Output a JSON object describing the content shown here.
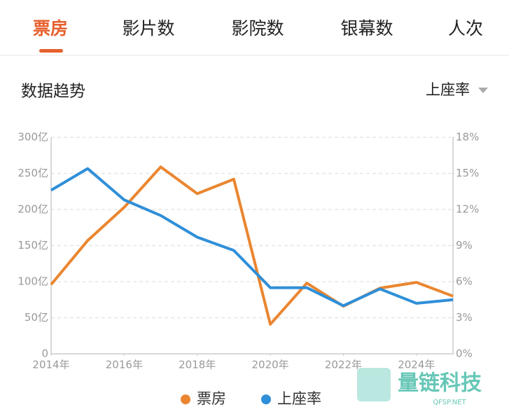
{
  "tabs": [
    "票房",
    "影片数",
    "影院数",
    "银幕数",
    "人次"
  ],
  "section_title": "数据趋势",
  "dropdown": "上座率",
  "watermark": {
    "name": "量链科技",
    "site": "QFSP.NET"
  },
  "chart_data": {
    "type": "line",
    "x": [
      2014,
      2015,
      2016,
      2017,
      2018,
      2019,
      2020,
      2021,
      2022,
      2023,
      2024,
      2025
    ],
    "xlim": [
      2014,
      2025
    ],
    "xticks": [
      {
        "value": 2014,
        "label": "2014年"
      },
      {
        "value": 2016,
        "label": "2016年"
      },
      {
        "value": 2018,
        "label": "2018年"
      },
      {
        "value": 2020,
        "label": "2020年"
      },
      {
        "value": 2022,
        "label": "2022年"
      },
      {
        "value": 2024,
        "label": "2024年"
      }
    ],
    "ylim": [
      0,
      300
    ],
    "yticks": [
      0,
      {
        "value": 50,
        "label": "50亿"
      },
      {
        "value": 100,
        "label": "100亿"
      },
      {
        "value": 150,
        "label": "150亿"
      },
      {
        "value": 200,
        "label": "200亿"
      },
      {
        "value": 250,
        "label": "250亿"
      },
      {
        "value": 300,
        "label": "300亿"
      }
    ],
    "y2lim": [
      0,
      18
    ],
    "y2ticks": [
      {
        "value": 0,
        "label": "0%"
      },
      {
        "value": 3,
        "label": "3%"
      },
      {
        "value": 6,
        "label": "6%"
      },
      {
        "value": 9,
        "label": "9%"
      },
      {
        "value": 12,
        "label": "12%"
      },
      {
        "value": 15,
        "label": "15%"
      },
      {
        "value": 18,
        "label": "18%"
      }
    ],
    "grid": true,
    "series": [
      {
        "name": "票房",
        "color": "#ea8630",
        "values": [
          96,
          157,
          203,
          259,
          222,
          242,
          41,
          98,
          66,
          91,
          99,
          80
        ]
      },
      {
        "name": "上座率",
        "color": "#2f8fd8",
        "axis": "y2",
        "values": [
          13.6,
          15.4,
          12.8,
          11.5,
          9.7,
          8.6,
          5.5,
          5.5,
          4.0,
          5.4,
          4.2,
          4.5
        ]
      }
    ]
  }
}
